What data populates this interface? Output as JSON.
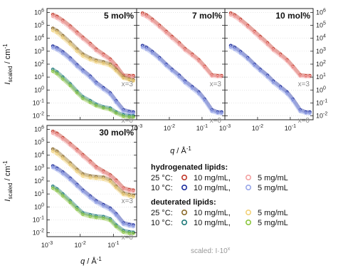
{
  "chart_data": {
    "type": "scatter",
    "xscale": "log",
    "yscale": "log",
    "xlim": [
      0.001,
      0.5
    ],
    "ylim": [
      0.005,
      2000000
    ],
    "ylabel_main": "I",
    "ylabel_sub": "scaled",
    "ylabel_unit": " / cm",
    "ylabel_exp": "-1",
    "xlabel_main": "q / Å",
    "xlabel_exp": "-1",
    "x_ticks": [
      {
        "value": 0.001,
        "base": "10",
        "exp": "-3"
      },
      {
        "value": 0.01,
        "base": "10",
        "exp": "-2"
      },
      {
        "value": 0.1,
        "base": "10",
        "exp": "-1"
      }
    ],
    "y_ticks": [
      {
        "value": 0.01,
        "base": "10",
        "exp": "-2"
      },
      {
        "value": 0.1,
        "base": "10",
        "exp": "-1"
      },
      {
        "value": 1,
        "base": "10",
        "exp": "0"
      },
      {
        "value": 10,
        "base": "10",
        "exp": "1"
      },
      {
        "value": 100,
        "base": "10",
        "exp": "2"
      },
      {
        "value": 1000,
        "base": "10",
        "exp": "3"
      },
      {
        "value": 10000,
        "base": "10",
        "exp": "4"
      },
      {
        "value": 100000,
        "base": "10",
        "exp": "5"
      },
      {
        "value": 1000000,
        "base": "10",
        "exp": "6"
      }
    ],
    "annotations": {
      "upper": "x=3",
      "lower": "x=0"
    },
    "panels": [
      {
        "title": "5 mol%",
        "series": [
          {
            "key": "h25_10",
            "color": "#c0392b",
            "x": [
              0.0015,
              0.002,
              0.003,
              0.005,
              0.008,
              0.012,
              0.02,
              0.03,
              0.05,
              0.08,
              0.12,
              0.2,
              0.3,
              0.4
            ],
            "y": [
              700000,
              500000,
              250000,
              90000,
              30000,
              12000,
              4000,
              1500,
              600,
              250,
              80,
              14,
              13,
              13
            ]
          },
          {
            "key": "h25_5",
            "color": "#f4a3a3",
            "x": [
              0.0015,
              0.002,
              0.003,
              0.005,
              0.008,
              0.012,
              0.02,
              0.03,
              0.05,
              0.08,
              0.12,
              0.2,
              0.3,
              0.4
            ],
            "y": [
              500000,
              360000,
              180000,
              65000,
              22000,
              9000,
              3000,
              1100,
              450,
              190,
              60,
              11,
              10,
              10
            ]
          },
          {
            "key": "d25_10",
            "color": "#8a6a2b",
            "x": [
              0.0015,
              0.002,
              0.003,
              0.005,
              0.008,
              0.012,
              0.02,
              0.03,
              0.05,
              0.08,
              0.12,
              0.2,
              0.3,
              0.4
            ],
            "y": [
              60000,
              40000,
              16000,
              5000,
              1500,
              600,
              300,
              200,
              150,
              100,
              40,
              10,
              7,
              6
            ]
          },
          {
            "key": "d25_5",
            "color": "#f2d27a",
            "x": [
              0.0015,
              0.002,
              0.003,
              0.005,
              0.008,
              0.012,
              0.02,
              0.03,
              0.05,
              0.08,
              0.12,
              0.2,
              0.3,
              0.4
            ],
            "y": [
              40000,
              27000,
              11000,
              3500,
              1000,
              420,
              220,
              150,
              110,
              75,
              30,
              8,
              6,
              5
            ]
          },
          {
            "key": "h10_10",
            "color": "#1f2f9e",
            "x": [
              0.0015,
              0.002,
              0.003,
              0.005,
              0.008,
              0.012,
              0.02,
              0.03,
              0.05,
              0.08,
              0.12,
              0.2,
              0.3,
              0.4
            ],
            "y": [
              2500,
              1800,
              900,
              300,
              90,
              35,
              12,
              4,
              1.5,
              0.6,
              0.15,
              0.03,
              0.022,
              0.02
            ]
          },
          {
            "key": "h10_5",
            "color": "#9aa8ea",
            "x": [
              0.0015,
              0.002,
              0.003,
              0.005,
              0.008,
              0.012,
              0.02,
              0.03,
              0.05,
              0.08,
              0.12,
              0.2,
              0.3,
              0.4
            ],
            "y": [
              1800,
              1300,
              650,
              220,
              65,
              26,
              9,
              3,
              1.1,
              0.45,
              0.11,
              0.022,
              0.016,
              0.015
            ]
          },
          {
            "key": "d10_10",
            "color": "#1f7a7a",
            "x": [
              0.0015,
              0.002,
              0.003,
              0.005,
              0.008,
              0.012,
              0.02,
              0.03,
              0.05,
              0.08,
              0.12,
              0.2,
              0.3,
              0.4
            ],
            "y": [
              40,
              25,
              10,
              3,
              0.8,
              0.3,
              0.15,
              0.08,
              0.05,
              0.04,
              0.02,
              0.012,
              0.01,
              0.01
            ]
          },
          {
            "key": "d10_5",
            "color": "#8cc63f",
            "x": [
              0.0015,
              0.002,
              0.003,
              0.005,
              0.008,
              0.012,
              0.02,
              0.03,
              0.05,
              0.08,
              0.12,
              0.2,
              0.3,
              0.4
            ],
            "y": [
              28,
              18,
              7,
              2.2,
              0.6,
              0.22,
              0.11,
              0.06,
              0.04,
              0.03,
              0.016,
              0.009,
              0.008,
              0.008
            ]
          }
        ]
      },
      {
        "title": "7 mol%",
        "series": [
          {
            "key": "h25_10",
            "color": "#c0392b",
            "x": [
              0.0015,
              0.002,
              0.003,
              0.005,
              0.008,
              0.012,
              0.02,
              0.03,
              0.05,
              0.08,
              0.12,
              0.2,
              0.3,
              0.4
            ],
            "y": [
              900000,
              650000,
              300000,
              100000,
              35000,
              14000,
              4500,
              1600,
              600,
              220,
              70,
              15,
              13,
              13
            ]
          },
          {
            "key": "h25_5",
            "color": "#f4a3a3",
            "x": [
              0.0015,
              0.002,
              0.003,
              0.005,
              0.008,
              0.012,
              0.02,
              0.03,
              0.05,
              0.08,
              0.12,
              0.2,
              0.3,
              0.4
            ],
            "y": [
              650000,
              470000,
              220000,
              75000,
              26000,
              10000,
              3300,
              1200,
              450,
              170,
              55,
              12,
              11,
              11
            ]
          },
          {
            "key": "h10_10",
            "color": "#1f2f9e",
            "x": [
              0.0015,
              0.002,
              0.003,
              0.005,
              0.008,
              0.012,
              0.02,
              0.03,
              0.05,
              0.08,
              0.12,
              0.2,
              0.3,
              0.4
            ],
            "y": [
              2800,
              2000,
              950,
              320,
              100,
              40,
              14,
              5,
              1.8,
              0.7,
              0.2,
              0.03,
              0.02,
              0.02
            ]
          },
          {
            "key": "h10_5",
            "color": "#9aa8ea",
            "x": [
              0.0015,
              0.002,
              0.003,
              0.005,
              0.008,
              0.012,
              0.02,
              0.03,
              0.05,
              0.08,
              0.12,
              0.2,
              0.3,
              0.4
            ],
            "y": [
              2000,
              1400,
              700,
              240,
              75,
              30,
              10,
              3.6,
              1.3,
              0.5,
              0.15,
              0.022,
              0.016,
              0.015
            ]
          }
        ]
      },
      {
        "title": "10 mol%",
        "series": [
          {
            "key": "h25_10",
            "color": "#c0392b",
            "x": [
              0.0015,
              0.002,
              0.003,
              0.005,
              0.008,
              0.012,
              0.02,
              0.03,
              0.05,
              0.08,
              0.12,
              0.2,
              0.3,
              0.4
            ],
            "y": [
              900000,
              650000,
              300000,
              100000,
              35000,
              14000,
              4500,
              1600,
              600,
              220,
              70,
              15,
              13,
              13
            ]
          },
          {
            "key": "h25_5",
            "color": "#f4a3a3",
            "x": [
              0.0015,
              0.002,
              0.003,
              0.005,
              0.008,
              0.012,
              0.02,
              0.03,
              0.05,
              0.08,
              0.12,
              0.2,
              0.3,
              0.4
            ],
            "y": [
              650000,
              470000,
              220000,
              75000,
              26000,
              10000,
              3300,
              1200,
              450,
              170,
              55,
              12,
              11,
              11
            ]
          },
          {
            "key": "h10_10",
            "color": "#1f2f9e",
            "x": [
              0.0015,
              0.002,
              0.003,
              0.005,
              0.008,
              0.012,
              0.02,
              0.03,
              0.05,
              0.08,
              0.12,
              0.2,
              0.3,
              0.4
            ],
            "y": [
              2800,
              2000,
              950,
              320,
              100,
              40,
              14,
              5,
              1.8,
              0.7,
              0.2,
              0.03,
              0.02,
              0.02
            ]
          },
          {
            "key": "h10_5",
            "color": "#9aa8ea",
            "x": [
              0.0015,
              0.002,
              0.003,
              0.005,
              0.008,
              0.012,
              0.02,
              0.03,
              0.05,
              0.08,
              0.12,
              0.2,
              0.3,
              0.4
            ],
            "y": [
              2000,
              1400,
              700,
              240,
              75,
              30,
              10,
              3.6,
              1.3,
              0.5,
              0.15,
              0.022,
              0.016,
              0.015
            ]
          }
        ]
      },
      {
        "title": "30 mol%",
        "series": [
          {
            "key": "h25_10",
            "color": "#c0392b",
            "x": [
              0.0015,
              0.002,
              0.003,
              0.005,
              0.008,
              0.012,
              0.02,
              0.03,
              0.05,
              0.08,
              0.12,
              0.2,
              0.3,
              0.4
            ],
            "y": [
              700000,
              500000,
              230000,
              80000,
              28000,
              11000,
              3500,
              1300,
              600,
              300,
              120,
              30,
              22,
              20
            ]
          },
          {
            "key": "h25_5",
            "color": "#f4a3a3",
            "x": [
              0.0015,
              0.002,
              0.003,
              0.005,
              0.008,
              0.012,
              0.02,
              0.03,
              0.05,
              0.08,
              0.12,
              0.2,
              0.3,
              0.4
            ],
            "y": [
              500000,
              360000,
              170000,
              60000,
              21000,
              8000,
              2600,
              1000,
              450,
              230,
              90,
              24,
              17,
              16
            ]
          },
          {
            "key": "d25_10",
            "color": "#8a6a2b",
            "x": [
              0.0015,
              0.002,
              0.003,
              0.005,
              0.008,
              0.012,
              0.02,
              0.03,
              0.05,
              0.08,
              0.12,
              0.2,
              0.3,
              0.4
            ],
            "y": [
              30000,
              20000,
              8000,
              2500,
              800,
              350,
              250,
              220,
              200,
              120,
              40,
              12,
              9,
              8
            ]
          },
          {
            "key": "d25_5",
            "color": "#f2d27a",
            "x": [
              0.0015,
              0.002,
              0.003,
              0.005,
              0.008,
              0.012,
              0.02,
              0.03,
              0.05,
              0.08,
              0.12,
              0.2,
              0.3,
              0.4
            ],
            "y": [
              20000,
              13000,
              5500,
              1800,
              550,
              240,
              180,
              160,
              140,
              90,
              30,
              9,
              7,
              6
            ]
          },
          {
            "key": "h10_10",
            "color": "#1f2f9e",
            "x": [
              0.0015,
              0.002,
              0.003,
              0.005,
              0.008,
              0.012,
              0.02,
              0.03,
              0.05,
              0.08,
              0.12,
              0.2,
              0.3,
              0.4
            ],
            "y": [
              1500,
              1000,
              500,
              170,
              55,
              20,
              7,
              3,
              1.5,
              0.8,
              0.3,
              0.06,
              0.045,
              0.04
            ]
          },
          {
            "key": "h10_5",
            "color": "#9aa8ea",
            "x": [
              0.0015,
              0.002,
              0.003,
              0.005,
              0.008,
              0.012,
              0.02,
              0.03,
              0.05,
              0.08,
              0.12,
              0.2,
              0.3,
              0.4
            ],
            "y": [
              1100,
              750,
              360,
              125,
              40,
              15,
              5,
              2.2,
              1.1,
              0.6,
              0.22,
              0.045,
              0.034,
              0.03
            ]
          },
          {
            "key": "d10_10",
            "color": "#1f7a7a",
            "x": [
              0.0015,
              0.002,
              0.003,
              0.005,
              0.008,
              0.012,
              0.02,
              0.03,
              0.05,
              0.08,
              0.12,
              0.2,
              0.3,
              0.4
            ],
            "y": [
              40,
              25,
              10,
              3,
              0.9,
              0.35,
              0.25,
              0.2,
              0.18,
              0.12,
              0.04,
              0.015,
              0.012,
              0.011
            ]
          },
          {
            "key": "d10_5",
            "color": "#8cc63f",
            "x": [
              0.0015,
              0.002,
              0.003,
              0.005,
              0.008,
              0.012,
              0.02,
              0.03,
              0.05,
              0.08,
              0.12,
              0.2,
              0.3,
              0.4
            ],
            "y": [
              28,
              18,
              7,
              2.2,
              0.65,
              0.26,
              0.18,
              0.15,
              0.13,
              0.09,
              0.03,
              0.011,
              0.009,
              0.009
            ]
          }
        ]
      }
    ]
  },
  "legend": {
    "groups": [
      {
        "heading": "hydrogenated lipids:",
        "rows": [
          {
            "temp": "25 °C:",
            "a_color": "#c0392b",
            "a_label": "10 mg/mL,",
            "b_color": "#f4a3a3",
            "b_label": "5 mg/mL"
          },
          {
            "temp": "10 °C:",
            "a_color": "#1f2f9e",
            "a_label": "10 mg/mL,",
            "b_color": "#9aa8ea",
            "b_label": "5 mg/mL"
          }
        ]
      },
      {
        "heading": "deuterated lipids:",
        "rows": [
          {
            "temp": "25 °C:",
            "a_color": "#8a6a2b",
            "a_label": "10 mg/mL,",
            "b_color": "#f2d27a",
            "b_label": "5 mg/mL"
          },
          {
            "temp": "10 °C:",
            "a_color": "#1f7a7a",
            "a_label": "10 mg/mL,",
            "b_color": "#8cc63f",
            "b_label": "5 mg/mL"
          }
        ]
      }
    ],
    "note_main": "scaled: I·10",
    "note_exp": "x"
  }
}
